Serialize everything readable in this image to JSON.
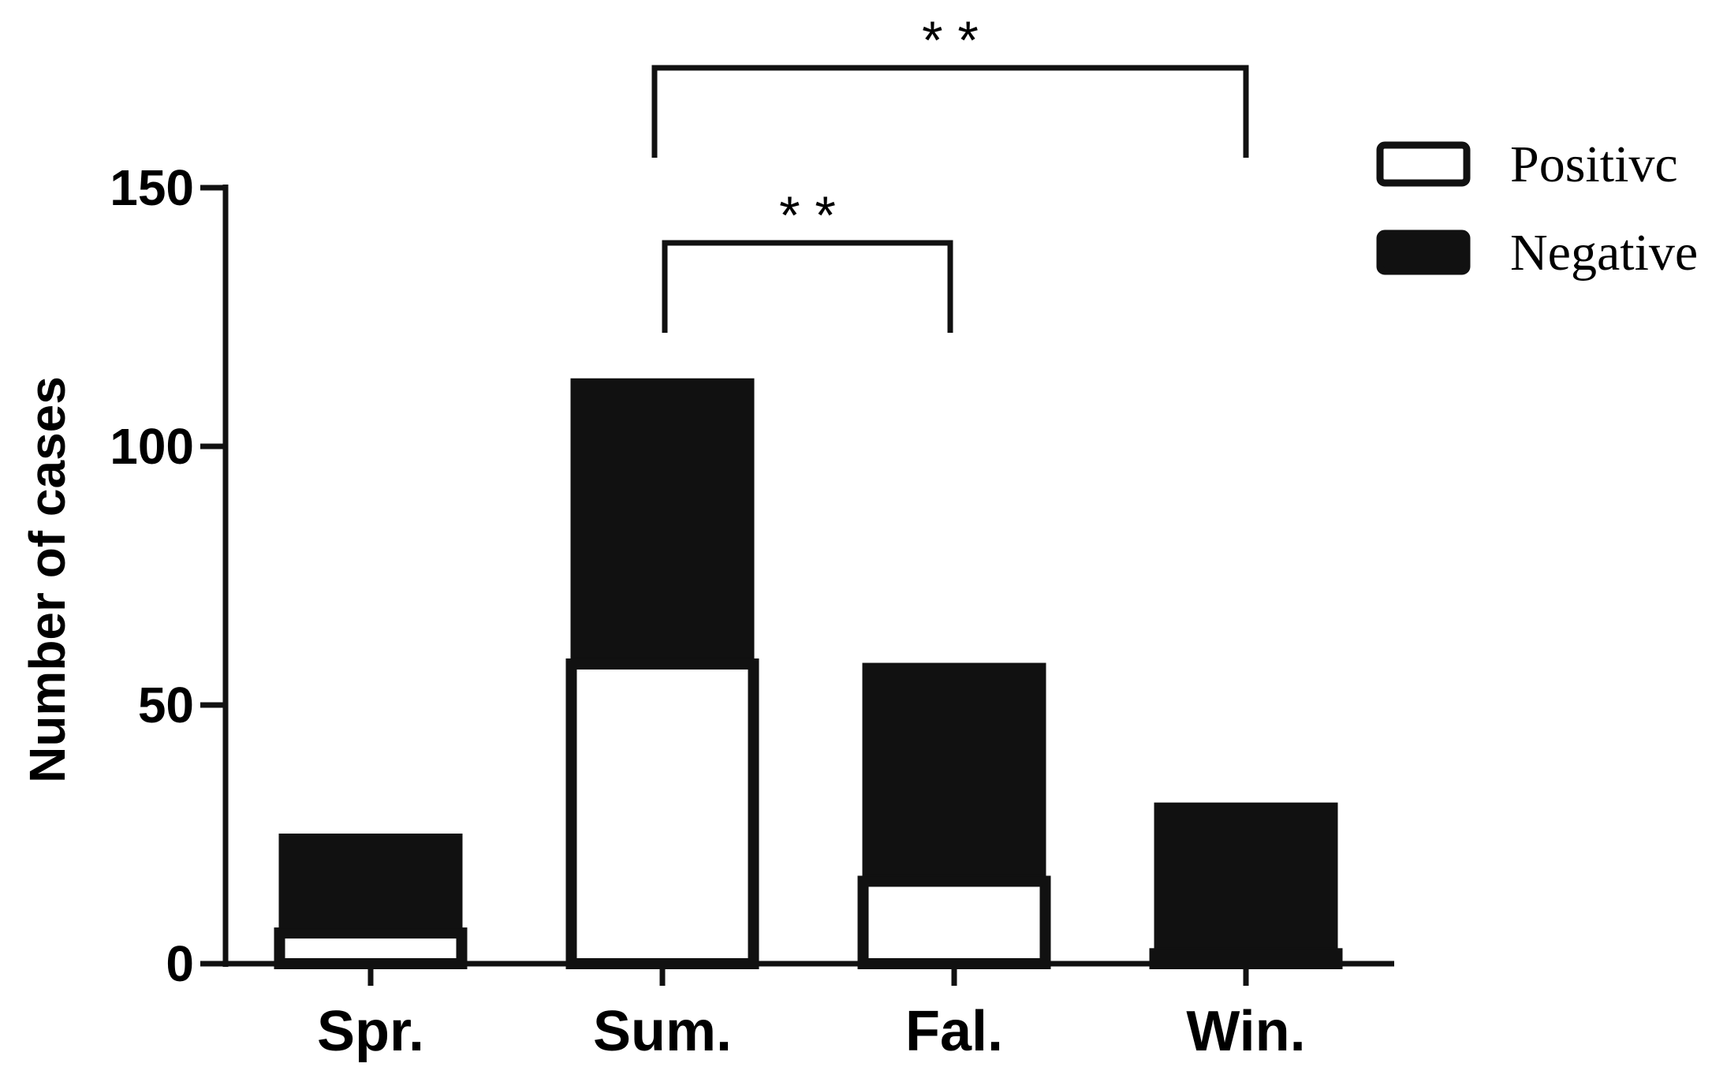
{
  "chart_data": {
    "type": "bar",
    "stacked": true,
    "categories": [
      "Spr.",
      "Sum.",
      "Fal.",
      "Win."
    ],
    "series": [
      {
        "name": "Positivc",
        "values": [
          7,
          59,
          17,
          3
        ],
        "color": "#ffffff"
      },
      {
        "name": "Negative",
        "values": [
          18,
          54,
          41,
          28
        ],
        "color": "#111111"
      }
    ],
    "xlabel": "",
    "ylabel": "Number of cases",
    "ylim": [
      0,
      150
    ],
    "yticks": [
      0,
      50,
      100,
      150
    ],
    "grid": false,
    "legend_position": "top-right",
    "significance": [
      {
        "from": "Sum.",
        "to": "Win.",
        "label": "* *"
      },
      {
        "from": "Sum.",
        "to": "Fal.",
        "label": "* *"
      }
    ]
  }
}
